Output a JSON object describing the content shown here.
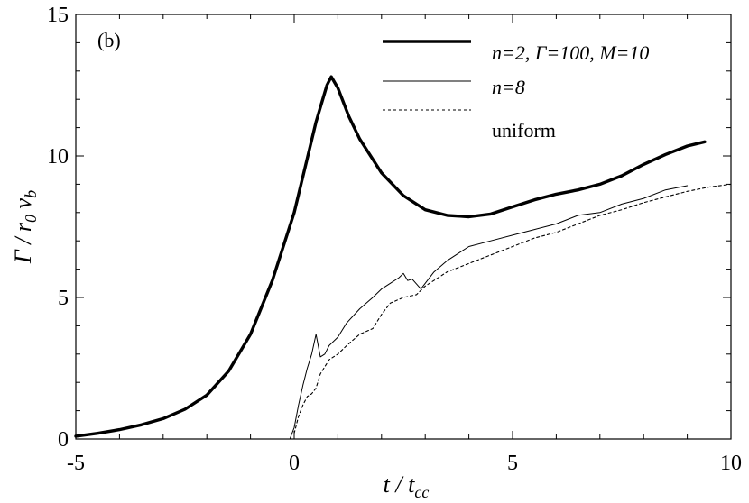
{
  "chart_data": {
    "type": "line",
    "panel_label": "(b)",
    "xlabel": "t / t",
    "xlabel_sub": "cc",
    "ylabel": "Γ / r",
    "ylabel_sub0": "0",
    "ylabel_v": " v",
    "ylabel_sub1": "b",
    "xlim": [
      -5,
      10
    ],
    "ylim": [
      0,
      15
    ],
    "xticks": [
      -5,
      0,
      5,
      10
    ],
    "yticks": [
      0,
      5,
      10,
      15
    ],
    "xtick_labels": [
      "-5",
      "0",
      "5",
      "10"
    ],
    "ytick_labels": [
      "0",
      "5",
      "10",
      "15"
    ],
    "grid": false,
    "legend_position": "top-right",
    "series": [
      {
        "name": "n=2, Γ=100, M=10",
        "style": "thick",
        "color": "#000000",
        "x": [
          -5,
          -4.5,
          -4,
          -3.5,
          -3,
          -2.5,
          -2,
          -1.5,
          -1,
          -0.5,
          0,
          0.25,
          0.5,
          0.75,
          0.85,
          1.0,
          1.25,
          1.5,
          2,
          2.5,
          3,
          3.5,
          4,
          4.5,
          5,
          5.5,
          6,
          6.5,
          7,
          7.5,
          8,
          8.5,
          9,
          9.4
        ],
        "y": [
          0.1,
          0.2,
          0.33,
          0.5,
          0.72,
          1.05,
          1.55,
          2.4,
          3.7,
          5.6,
          8.0,
          9.6,
          11.2,
          12.5,
          12.8,
          12.4,
          11.4,
          10.6,
          9.4,
          8.6,
          8.1,
          7.9,
          7.85,
          7.95,
          8.2,
          8.45,
          8.65,
          8.8,
          9.0,
          9.3,
          9.7,
          10.05,
          10.35,
          10.5
        ]
      },
      {
        "name": "n=8",
        "style": "thin",
        "color": "#000000",
        "x": [
          -0.1,
          0,
          0.1,
          0.2,
          0.3,
          0.4,
          0.5,
          0.6,
          0.7,
          0.8,
          1.0,
          1.2,
          1.5,
          1.8,
          2.0,
          2.2,
          2.4,
          2.5,
          2.6,
          2.7,
          2.9,
          3.2,
          3.5,
          4.0,
          4.5,
          5.0,
          5.5,
          6.0,
          6.5,
          7.0,
          7.5,
          8.0,
          8.5,
          9.0
        ],
        "y": [
          0,
          0.4,
          1.2,
          1.9,
          2.5,
          3.0,
          3.7,
          2.9,
          3.0,
          3.3,
          3.6,
          4.1,
          4.6,
          5.0,
          5.3,
          5.5,
          5.7,
          5.85,
          5.6,
          5.65,
          5.3,
          5.9,
          6.3,
          6.8,
          7.0,
          7.2,
          7.4,
          7.6,
          7.9,
          8.0,
          8.3,
          8.5,
          8.8,
          8.95
        ]
      },
      {
        "name": "uniform",
        "style": "dotted",
        "color": "#000000",
        "x": [
          0,
          0.1,
          0.2,
          0.3,
          0.4,
          0.5,
          0.6,
          0.8,
          1.0,
          1.2,
          1.5,
          1.8,
          2.0,
          2.2,
          2.5,
          2.8,
          3.0,
          3.5,
          4.0,
          4.5,
          5.0,
          5.5,
          6.0,
          6.5,
          7.0,
          7.5,
          8.0,
          8.5,
          9.0,
          9.5,
          10.0
        ],
        "y": [
          0.2,
          0.8,
          1.2,
          1.5,
          1.6,
          1.8,
          2.3,
          2.8,
          3.0,
          3.3,
          3.7,
          3.9,
          4.4,
          4.8,
          5.0,
          5.1,
          5.4,
          5.9,
          6.2,
          6.5,
          6.8,
          7.1,
          7.3,
          7.6,
          7.9,
          8.1,
          8.35,
          8.55,
          8.75,
          8.9,
          9.0
        ]
      }
    ]
  }
}
